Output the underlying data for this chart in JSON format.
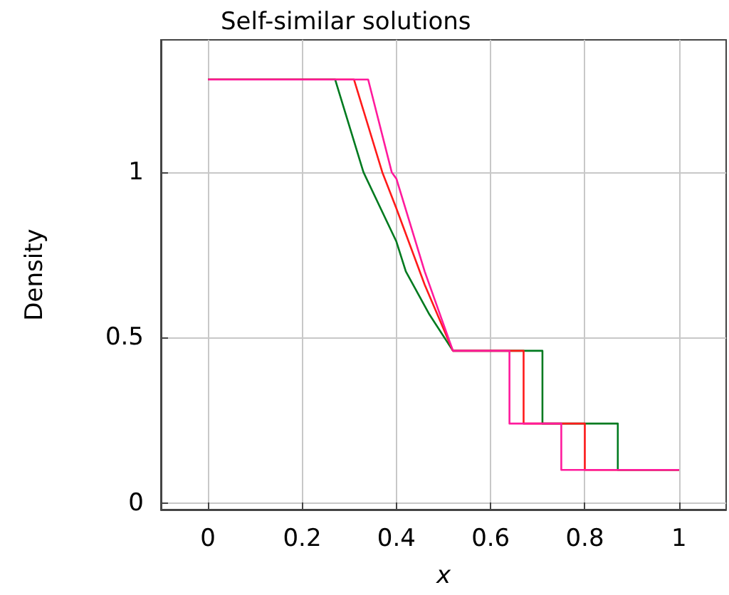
{
  "chart_data": {
    "type": "line",
    "title": "Self-similar solutions",
    "xlabel": "x",
    "ylabel": "Density",
    "series": [
      {
        "color": "#007a1f",
        "x": [
          0,
          0.27,
          0.33,
          0.4,
          0.42,
          0.47,
          0.52,
          0.71,
          0.71,
          0.87,
          0.87,
          1
        ],
        "values": [
          1.28,
          1.28,
          1.0,
          0.79,
          0.7,
          0.57,
          0.46,
          0.46,
          0.24,
          0.24,
          0.1,
          0.1
        ]
      },
      {
        "color": "#ff1a1a",
        "x": [
          0,
          0.31,
          0.37,
          0.4,
          0.46,
          0.52,
          0.67,
          0.67,
          0.8,
          0.8,
          1
        ],
        "values": [
          1.28,
          1.28,
          1.0,
          0.89,
          0.66,
          0.46,
          0.46,
          0.24,
          0.24,
          0.1,
          0.1
        ]
      },
      {
        "color": "#ff1a9c",
        "x": [
          0,
          0.34,
          0.39,
          0.4,
          0.46,
          0.52,
          0.64,
          0.64,
          0.75,
          0.75,
          1
        ],
        "values": [
          1.28,
          1.28,
          1.0,
          0.98,
          0.7,
          0.46,
          0.46,
          0.24,
          0.24,
          0.1,
          0.1
        ]
      }
    ],
    "xlim": [
      -0.1,
      1.1
    ],
    "xticks": [
      0,
      0.2,
      0.4,
      0.6,
      0.8,
      1
    ],
    "ylim": [
      -0.02,
      1.4
    ],
    "yticks": [
      0,
      0.5,
      1
    ],
    "grid": true,
    "marker": "none",
    "line_style": "solid"
  }
}
